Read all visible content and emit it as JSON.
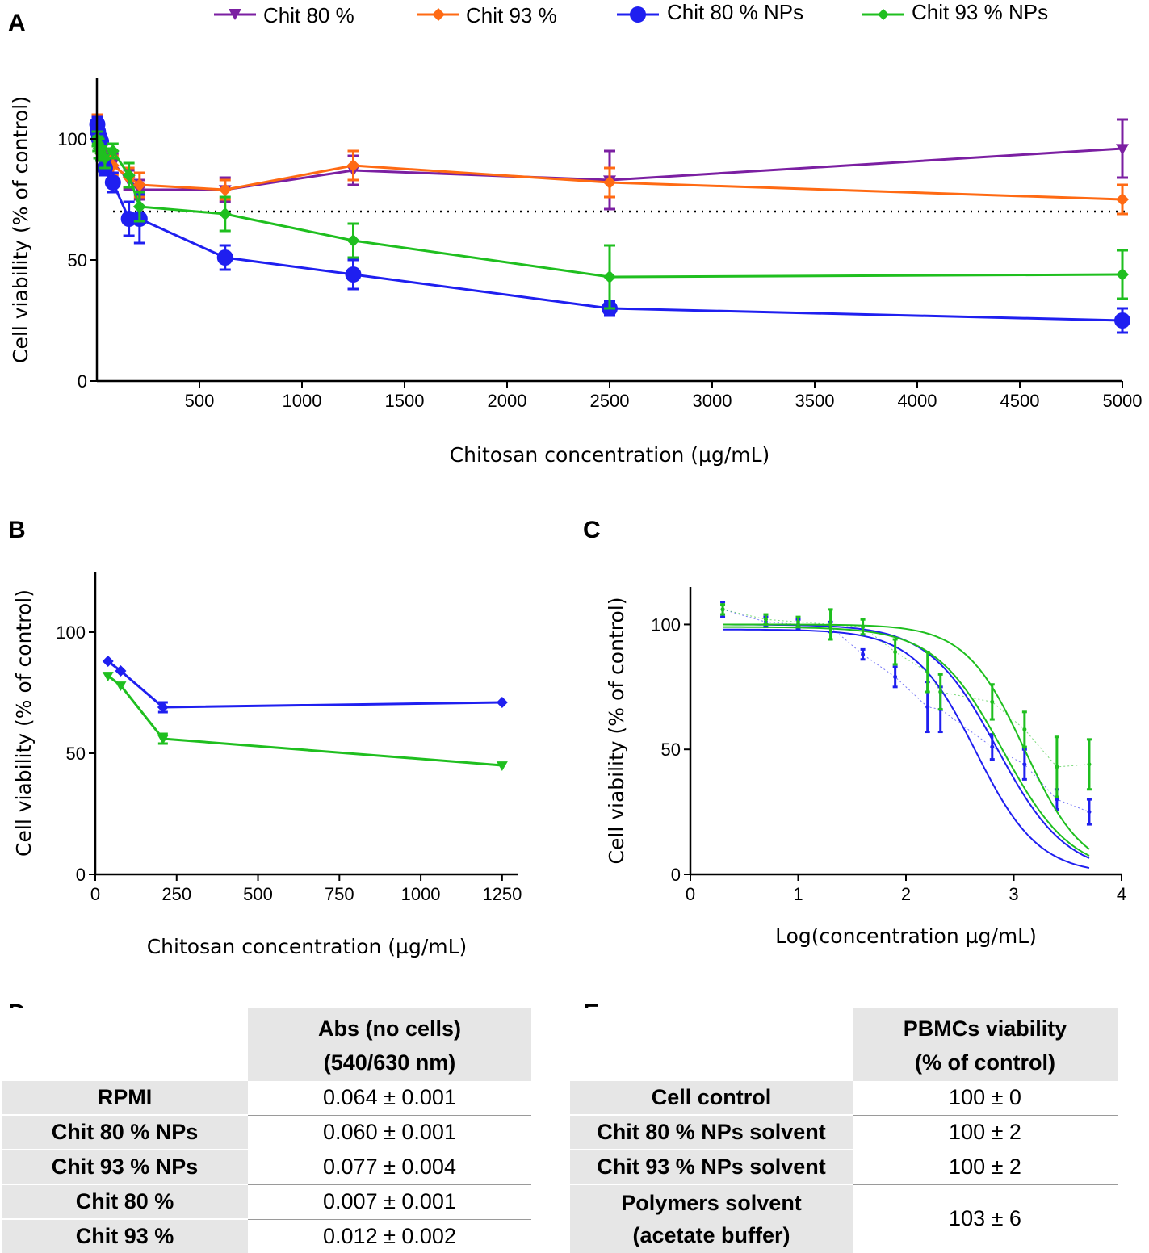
{
  "panels": {
    "A": "A",
    "B": "B",
    "C": "C",
    "D": "D",
    "E": "E"
  },
  "colors": {
    "chit80": "#7b1fa2",
    "chit93": "#ff6a13",
    "chit80np": "#1f1ff0",
    "chit93np": "#1fbf1f"
  },
  "chart_data": [
    {
      "id": "A",
      "type": "line",
      "title": "",
      "xlabel": "Chitosan concentration (µg/mL)",
      "ylabel": "Cell viability (% of control)",
      "xlim": [
        0,
        5000
      ],
      "ylim": [
        0,
        125
      ],
      "xticks": [
        500,
        1000,
        1500,
        2000,
        2500,
        3000,
        3500,
        4000,
        4500,
        5000
      ],
      "yticks": [
        0,
        50,
        100
      ],
      "reference_line": 70,
      "legend": {
        "placement": "top",
        "entries": [
          "Chit 80 %",
          "Chit 93 %",
          "Chit 80 % NPs",
          "Chit 93 % NPs"
        ]
      },
      "series": [
        {
          "name": "Chit 80 %",
          "color": "chit80",
          "marker": "tri-down",
          "x": [
            2,
            5,
            10,
            20,
            39,
            78,
            156,
            208,
            625,
            1250,
            2500,
            5000
          ],
          "y": [
            104,
            102,
            100,
            98,
            92,
            90,
            83,
            79,
            79,
            87,
            83,
            96
          ],
          "err": [
            3,
            3,
            3,
            3,
            4,
            4,
            4,
            4,
            5,
            6,
            12,
            12
          ]
        },
        {
          "name": "Chit 93 %",
          "color": "chit93",
          "marker": "diamond",
          "x": [
            2,
            5,
            10,
            20,
            39,
            78,
            156,
            208,
            625,
            1250,
            2500,
            5000
          ],
          "y": [
            106,
            104,
            100,
            97,
            92,
            89,
            84,
            81,
            79,
            89,
            82,
            75
          ],
          "err": [
            4,
            3,
            3,
            3,
            4,
            4,
            4,
            5,
            4,
            6,
            6,
            6
          ]
        },
        {
          "name": "Chit 80 % NPs",
          "color": "chit80np",
          "marker": "circle",
          "x": [
            2,
            5,
            10,
            20,
            39,
            78,
            156,
            208,
            625,
            1250,
            2500,
            5000
          ],
          "y": [
            106,
            103,
            100,
            99,
            88,
            82,
            67,
            67,
            51,
            44,
            30,
            25
          ],
          "err": [
            3,
            3,
            3,
            3,
            3,
            4,
            7,
            10,
            5,
            6,
            3,
            5
          ]
        },
        {
          "name": "Chit 93 % NPs",
          "color": "chit93np",
          "marker": "diamond",
          "x": [
            2,
            5,
            10,
            20,
            39,
            78,
            156,
            208,
            625,
            1250,
            2500,
            5000
          ],
          "y": [
            100,
            98,
            96,
            94,
            92,
            95,
            85,
            72,
            69,
            58,
            43,
            44
          ],
          "err": [
            3,
            3,
            4,
            3,
            4,
            3,
            5,
            6,
            7,
            7,
            13,
            10
          ]
        }
      ]
    },
    {
      "id": "B",
      "type": "line",
      "title": "",
      "xlabel": "Chitosan concentration (µg/mL)",
      "ylabel": "Cell viability (% of control)",
      "xlim": [
        0,
        1300
      ],
      "ylim": [
        0,
        125
      ],
      "xticks": [
        0,
        250,
        500,
        750,
        1000,
        1250
      ],
      "yticks": [
        0,
        50,
        100
      ],
      "series": [
        {
          "name": "Chit 80 % NPs",
          "color": "chit80np",
          "marker": "diamond",
          "x": [
            39,
            78,
            208,
            1250
          ],
          "y": [
            88,
            84,
            69,
            71
          ],
          "err": [
            0,
            0,
            2,
            0
          ]
        },
        {
          "name": "Chit 93 % NPs",
          "color": "chit93np",
          "marker": "tri-down",
          "x": [
            39,
            78,
            208,
            1250
          ],
          "y": [
            82,
            78,
            56,
            45
          ],
          "err": [
            0,
            0,
            2,
            0
          ]
        }
      ]
    },
    {
      "id": "C",
      "type": "scatter",
      "title": "",
      "xlabel": "Log(concentration µg/mL)",
      "ylabel": "Cell viability (% of control)",
      "xlim": [
        0,
        4
      ],
      "ylim": [
        0,
        115
      ],
      "xticks": [
        0,
        1,
        2,
        3,
        4
      ],
      "yticks": [
        0,
        50,
        100
      ],
      "series": [
        {
          "name": "Chit 80 % NPs",
          "color": "chit80np",
          "x": [
            0.3,
            0.7,
            1.0,
            1.3,
            1.6,
            1.9,
            2.2,
            2.32,
            2.8,
            3.1,
            3.4,
            3.7
          ],
          "y": [
            106,
            101,
            100,
            99,
            88,
            79,
            67,
            66,
            51,
            44,
            30,
            25
          ],
          "err": [
            3,
            2,
            2,
            2,
            2,
            4,
            10,
            9,
            5,
            6,
            4,
            5
          ],
          "fits": [
            {
              "x_range": [
                0.3,
                3.7
              ],
              "top": 100,
              "logIC50": 2.85,
              "hill": 0.62
            },
            {
              "x_range": [
                0.3,
                3.7
              ],
              "top": 98,
              "logIC50": 2.65,
              "hill": 0.68
            }
          ]
        },
        {
          "name": "Chit 93 % NPs",
          "color": "chit93np",
          "x": [
            0.3,
            0.7,
            1.0,
            1.3,
            1.6,
            1.9,
            2.2,
            2.32,
            2.8,
            3.1,
            3.4,
            3.7
          ],
          "y": [
            106,
            102,
            101,
            100,
            99,
            89,
            81,
            73,
            69,
            58,
            43,
            44
          ],
          "err": [
            2,
            2,
            2,
            6,
            3,
            5,
            8,
            7,
            7,
            7,
            12,
            10
          ],
          "fits": [
            {
              "x_range": [
                0.3,
                3.7
              ],
              "top": 100,
              "logIC50": 3.1,
              "hill": 0.72
            },
            {
              "x_range": [
                0.3,
                3.7
              ],
              "top": 99,
              "logIC50": 2.9,
              "hill": 0.62
            }
          ]
        }
      ]
    },
    {
      "id": "D",
      "type": "table",
      "header": [
        "Abs (no cells)",
        "(540/630 nm)"
      ],
      "rows": [
        {
          "label": "RPMI",
          "value": "0.064 ± 0.001"
        },
        {
          "label": "Chit 80 % NPs",
          "value": "0.060 ± 0.001"
        },
        {
          "label": "Chit 93 % NPs",
          "value": "0.077 ± 0.004"
        },
        {
          "label": "Chit 80 %",
          "value": "0.007 ± 0.001"
        },
        {
          "label": "Chit 93 %",
          "value": "0.012 ± 0.002"
        }
      ]
    },
    {
      "id": "E",
      "type": "table",
      "header": [
        "PBMCs viability",
        "(% of control)"
      ],
      "rows": [
        {
          "label": "Cell control",
          "value": "100 ± 0"
        },
        {
          "label": "Chit 80 % NPs solvent",
          "value": "100 ± 2"
        },
        {
          "label": "Chit 93 % NPs solvent",
          "value": "100 ± 2"
        },
        {
          "label": "Polymers solvent",
          "label2": "(acetate buffer)",
          "value": "103 ± 6"
        }
      ]
    }
  ]
}
